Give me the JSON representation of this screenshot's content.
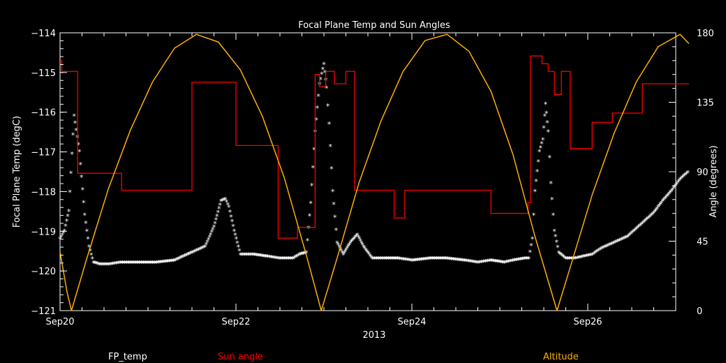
{
  "chart_data": {
    "type": "line",
    "title": "Focal Plane Temp and Sun Angles",
    "xlabel": "2013",
    "ylabel_left": "Focal Plane Temp (degC)",
    "ylabel_right": "Angle (degrees)",
    "xlim_days": [
      20.0,
      27.0
    ],
    "ylim_left": [
      -121,
      -114
    ],
    "ylim_right": [
      0,
      180
    ],
    "x_ticks": [
      {
        "day": 20.0,
        "label": "Sep20"
      },
      {
        "day": 22.0,
        "label": "Sep22"
      },
      {
        "day": 24.0,
        "label": "Sep24"
      },
      {
        "day": 26.0,
        "label": "Sep26"
      }
    ],
    "y_ticks_left": [
      {
        "value": -121,
        "label": "−121"
      },
      {
        "value": -120,
        "label": "−120"
      },
      {
        "value": -119,
        "label": "−119"
      },
      {
        "value": -118,
        "label": "−118"
      },
      {
        "value": -117,
        "label": "−117"
      },
      {
        "value": -116,
        "label": "−116"
      },
      {
        "value": -115,
        "label": "−115"
      },
      {
        "value": -114,
        "label": "−114"
      }
    ],
    "y_ticks_right": [
      {
        "value": 0,
        "label": "0"
      },
      {
        "value": 45,
        "label": "45"
      },
      {
        "value": 90,
        "label": "90"
      },
      {
        "value": 135,
        "label": "135"
      },
      {
        "value": 180,
        "label": "180"
      }
    ],
    "legend": [
      {
        "name": "FP_temp",
        "color": "#ffffff"
      },
      {
        "name": "Sun angle",
        "color": "#ff0000"
      },
      {
        "name": "Altitude",
        "color": "#ffb000"
      }
    ],
    "series": [
      {
        "name": "FP_temp",
        "axis": "left",
        "style": "star-markers",
        "color": "#ffffff",
        "points": [
          [
            20.0,
            -119.2
          ],
          [
            20.05,
            -119.0
          ],
          [
            20.1,
            -118.5
          ],
          [
            20.16,
            -116.1
          ],
          [
            20.22,
            -117.0
          ],
          [
            20.28,
            -118.6
          ],
          [
            20.33,
            -119.4
          ],
          [
            20.38,
            -119.8
          ],
          [
            20.45,
            -119.85
          ],
          [
            20.55,
            -119.85
          ],
          [
            20.7,
            -119.8
          ],
          [
            20.9,
            -119.8
          ],
          [
            21.1,
            -119.8
          ],
          [
            21.3,
            -119.75
          ],
          [
            21.5,
            -119.55
          ],
          [
            21.65,
            -119.4
          ],
          [
            21.75,
            -118.9
          ],
          [
            21.83,
            -118.25
          ],
          [
            21.88,
            -118.2
          ],
          [
            21.92,
            -118.4
          ],
          [
            21.98,
            -119.0
          ],
          [
            22.05,
            -119.6
          ],
          [
            22.2,
            -119.6
          ],
          [
            22.35,
            -119.65
          ],
          [
            22.5,
            -119.7
          ],
          [
            22.65,
            -119.7
          ],
          [
            22.72,
            -119.6
          ],
          [
            22.8,
            -119.55
          ],
          [
            22.85,
            -118.3
          ],
          [
            22.9,
            -116.5
          ],
          [
            22.95,
            -115.3
          ],
          [
            23.0,
            -114.8
          ],
          [
            23.03,
            -115.4
          ],
          [
            23.06,
            -116.3
          ],
          [
            23.1,
            -118.0
          ],
          [
            23.15,
            -119.3
          ],
          [
            23.22,
            -119.6
          ],
          [
            23.3,
            -119.3
          ],
          [
            23.38,
            -119.1
          ],
          [
            23.45,
            -119.4
          ],
          [
            23.55,
            -119.7
          ],
          [
            23.7,
            -119.7
          ],
          [
            23.85,
            -119.7
          ],
          [
            24.0,
            -119.75
          ],
          [
            24.2,
            -119.7
          ],
          [
            24.4,
            -119.7
          ],
          [
            24.6,
            -119.75
          ],
          [
            24.75,
            -119.8
          ],
          [
            24.9,
            -119.75
          ],
          [
            25.05,
            -119.8
          ],
          [
            25.15,
            -119.75
          ],
          [
            25.28,
            -119.7
          ],
          [
            25.33,
            -119.7
          ],
          [
            25.37,
            -119.2
          ],
          [
            25.4,
            -118.0
          ],
          [
            25.45,
            -117.0
          ],
          [
            25.49,
            -116.7
          ],
          [
            25.52,
            -115.8
          ],
          [
            25.55,
            -116.5
          ],
          [
            25.58,
            -117.8
          ],
          [
            25.62,
            -119.0
          ],
          [
            25.67,
            -119.55
          ],
          [
            25.75,
            -119.7
          ],
          [
            25.85,
            -119.7
          ],
          [
            25.95,
            -119.65
          ],
          [
            26.05,
            -119.6
          ],
          [
            26.15,
            -119.45
          ],
          [
            26.25,
            -119.35
          ],
          [
            26.35,
            -119.25
          ],
          [
            26.45,
            -119.15
          ],
          [
            26.55,
            -118.95
          ],
          [
            26.65,
            -118.75
          ],
          [
            26.75,
            -118.55
          ],
          [
            26.85,
            -118.25
          ],
          [
            26.95,
            -118.0
          ],
          [
            27.05,
            -117.7
          ],
          [
            27.15,
            -117.5
          ]
        ]
      },
      {
        "name": "Sun angle",
        "axis": "right",
        "style": "step-line",
        "color": "#ff0000",
        "points": [
          [
            20.0,
            162
          ],
          [
            20.02,
            155
          ],
          [
            20.18,
            155
          ],
          [
            20.2,
            89
          ],
          [
            20.55,
            89
          ],
          [
            20.7,
            78
          ],
          [
            21.48,
            78
          ],
          [
            21.5,
            148
          ],
          [
            21.95,
            148
          ],
          [
            22.0,
            107
          ],
          [
            22.45,
            107
          ],
          [
            22.48,
            47
          ],
          [
            22.68,
            47
          ],
          [
            22.7,
            54
          ],
          [
            22.88,
            54
          ],
          [
            22.9,
            153
          ],
          [
            22.95,
            145
          ],
          [
            23.0,
            145
          ],
          [
            23.02,
            155
          ],
          [
            23.08,
            155
          ],
          [
            23.12,
            147
          ],
          [
            23.2,
            147
          ],
          [
            23.25,
            155
          ],
          [
            23.32,
            155
          ],
          [
            23.35,
            78
          ],
          [
            23.75,
            78
          ],
          [
            23.8,
            60
          ],
          [
            23.88,
            60
          ],
          [
            23.92,
            78
          ],
          [
            24.85,
            78
          ],
          [
            24.9,
            63
          ],
          [
            25.28,
            63
          ],
          [
            25.32,
            70
          ],
          [
            25.35,
            165
          ],
          [
            25.45,
            165
          ],
          [
            25.48,
            160
          ],
          [
            25.55,
            155
          ],
          [
            25.62,
            140
          ],
          [
            25.68,
            140
          ],
          [
            25.7,
            155
          ],
          [
            25.78,
            155
          ],
          [
            25.8,
            105
          ],
          [
            26.0,
            105
          ],
          [
            26.05,
            122
          ],
          [
            26.25,
            122
          ],
          [
            26.28,
            128
          ],
          [
            26.58,
            128
          ],
          [
            26.62,
            147
          ],
          [
            27.15,
            147
          ]
        ]
      },
      {
        "name": "Altitude",
        "axis": "right",
        "style": "line",
        "color": "#ffb000",
        "points": [
          [
            20.0,
            38
          ],
          [
            20.08,
            12
          ],
          [
            20.13,
            0
          ],
          [
            20.3,
            33
          ],
          [
            20.55,
            79
          ],
          [
            20.8,
            117
          ],
          [
            21.05,
            148
          ],
          [
            21.3,
            170
          ],
          [
            21.55,
            179
          ],
          [
            21.8,
            174
          ],
          [
            22.05,
            156
          ],
          [
            22.3,
            126
          ],
          [
            22.55,
            86
          ],
          [
            22.8,
            36
          ],
          [
            22.97,
            0
          ],
          [
            23.15,
            34
          ],
          [
            23.4,
            83
          ],
          [
            23.65,
            123
          ],
          [
            23.9,
            155
          ],
          [
            24.15,
            175
          ],
          [
            24.4,
            179
          ],
          [
            24.65,
            168
          ],
          [
            24.9,
            142
          ],
          [
            25.15,
            101
          ],
          [
            25.4,
            48
          ],
          [
            25.65,
            0
          ],
          [
            25.8,
            28
          ],
          [
            26.05,
            75
          ],
          [
            26.3,
            115
          ],
          [
            26.55,
            148
          ],
          [
            26.8,
            171
          ],
          [
            27.05,
            179
          ],
          [
            27.15,
            173
          ]
        ]
      }
    ]
  }
}
